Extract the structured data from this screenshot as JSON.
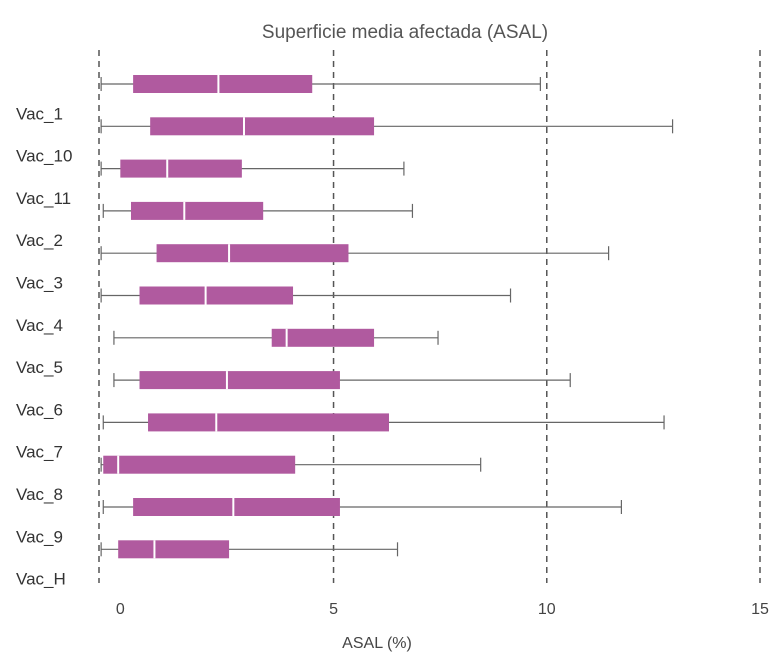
{
  "chart_data": {
    "type": "boxplot",
    "title": "Superficie media afectada (ASAL)",
    "xlabel": "ASAL (%)",
    "ylabel": "",
    "xlim": [
      -0.5,
      15
    ],
    "xticks": [
      0,
      5,
      10,
      15
    ],
    "grid": "vertical dashed at major ticks",
    "box_color": "#b05a9f",
    "whisker_color": "#666666",
    "grid_color": "#555555",
    "categories": [
      "",
      "Vac_1",
      "Vac_10",
      "Vac_11",
      "Vac_2",
      "Vac_3",
      "Vac_4",
      "Vac_5",
      "Vac_6",
      "Vac_7",
      "Vac_8",
      "Vac_9",
      "Vac_H"
    ],
    "boxes": [
      {
        "min": -0.45,
        "q1": 0.3,
        "median": 2.3,
        "q3": 4.5,
        "max": 9.85
      },
      {
        "min": -0.45,
        "q1": 0.7,
        "median": 2.9,
        "q3": 5.95,
        "max": 12.95
      },
      {
        "min": -0.45,
        "q1": 0.0,
        "median": 1.1,
        "q3": 2.85,
        "max": 6.65
      },
      {
        "min": -0.4,
        "q1": 0.25,
        "median": 1.5,
        "q3": 3.35,
        "max": 6.85
      },
      {
        "min": -0.45,
        "q1": 0.85,
        "median": 2.55,
        "q3": 5.35,
        "max": 11.45
      },
      {
        "min": -0.45,
        "q1": 0.45,
        "median": 2.0,
        "q3": 4.05,
        "max": 9.15
      },
      {
        "min": -0.15,
        "q1": 3.55,
        "median": 3.9,
        "q3": 5.95,
        "max": 7.45
      },
      {
        "min": -0.15,
        "q1": 0.45,
        "median": 2.5,
        "q3": 5.15,
        "max": 10.55
      },
      {
        "min": -0.4,
        "q1": 0.65,
        "median": 2.25,
        "q3": 6.3,
        "max": 12.75
      },
      {
        "min": -0.45,
        "q1": -0.4,
        "median": -0.05,
        "q3": 4.1,
        "max": 8.45
      },
      {
        "min": -0.4,
        "q1": 0.3,
        "median": 2.65,
        "q3": 5.15,
        "max": 11.75
      },
      {
        "min": -0.45,
        "q1": -0.05,
        "median": 0.8,
        "q3": 2.55,
        "max": 6.5
      }
    ]
  }
}
